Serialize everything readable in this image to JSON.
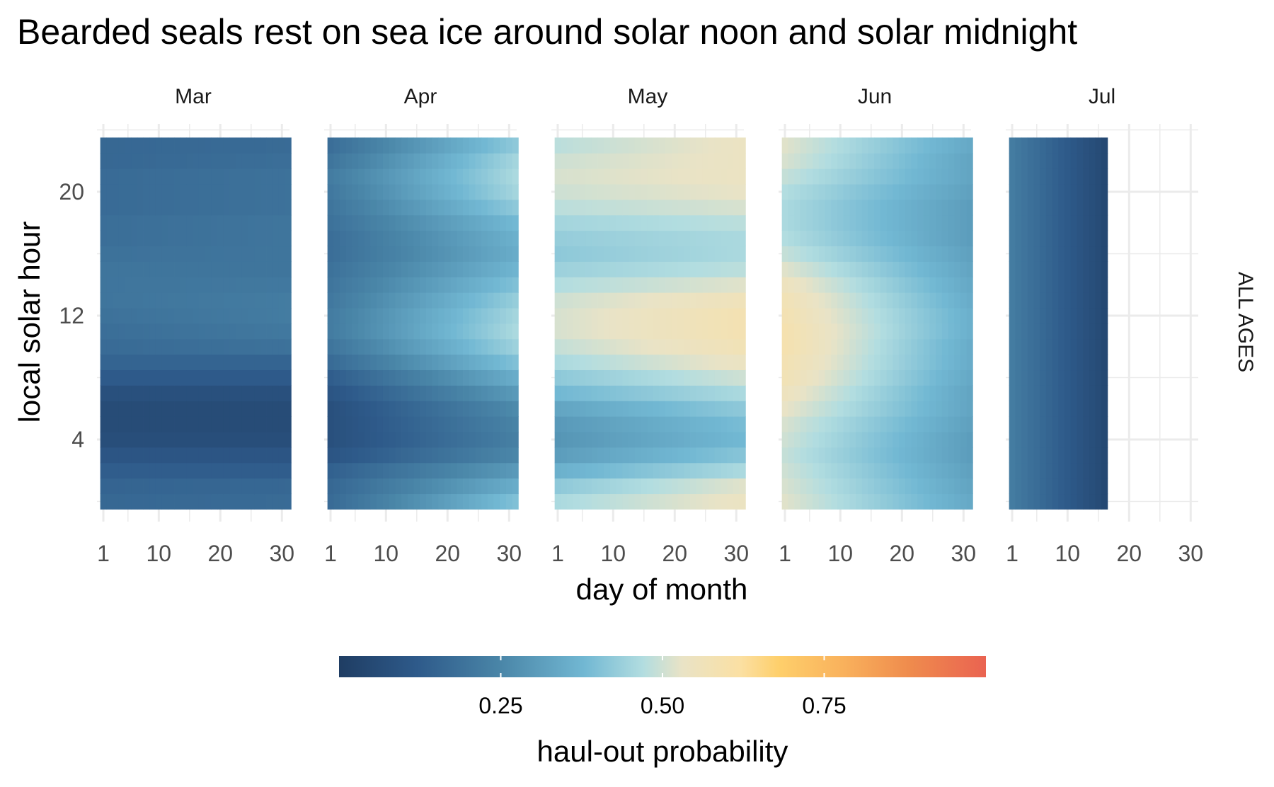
{
  "chart_data": {
    "type": "heatmap",
    "title": "Bearded seals rest on sea ice around solar noon and solar midnight",
    "xlabel": "day of month",
    "ylabel": "local solar hour",
    "facet_strip_right": "ALL AGES",
    "x_ticks": [
      1,
      10,
      20,
      30
    ],
    "y_ticks": [
      4,
      12,
      20
    ],
    "xlim": [
      1,
      31
    ],
    "ylim": [
      0,
      23
    ],
    "grid": true,
    "legend_position": "bottom",
    "colorbar": {
      "title": "haul-out probability",
      "ticks": [
        "0.25",
        "0.50",
        "0.75"
      ],
      "range": [
        0,
        1
      ],
      "stops": [
        {
          "v": 0.0,
          "color": "#1f3d63"
        },
        {
          "v": 0.12,
          "color": "#2e5a8a"
        },
        {
          "v": 0.25,
          "color": "#4a86a8"
        },
        {
          "v": 0.38,
          "color": "#72b8d3"
        },
        {
          "v": 0.47,
          "color": "#b2dde0"
        },
        {
          "v": 0.53,
          "color": "#e9e3c6"
        },
        {
          "v": 0.62,
          "color": "#fbe0a3"
        },
        {
          "v": 0.68,
          "color": "#fecf6b"
        },
        {
          "v": 0.78,
          "color": "#f9b15c"
        },
        {
          "v": 0.88,
          "color": "#ef8c4d"
        },
        {
          "v": 1.0,
          "color": "#ea6351"
        }
      ]
    },
    "panels": [
      {
        "label": "Mar",
        "day_range": [
          1,
          31
        ],
        "hour_values_early": [
          0.16,
          0.15,
          0.13,
          0.1,
          0.07,
          0.06,
          0.06,
          0.08,
          0.12,
          0.15,
          0.17,
          0.18,
          0.19,
          0.2,
          0.2,
          0.2,
          0.19,
          0.18,
          0.18,
          0.17,
          0.17,
          0.17,
          0.16,
          0.16
        ],
        "hour_values_late": [
          0.17,
          0.16,
          0.13,
          0.1,
          0.07,
          0.06,
          0.06,
          0.08,
          0.12,
          0.15,
          0.19,
          0.21,
          0.22,
          0.22,
          0.21,
          0.2,
          0.2,
          0.2,
          0.2,
          0.19,
          0.19,
          0.19,
          0.18,
          0.17
        ]
      },
      {
        "label": "Apr",
        "day_range": [
          1,
          31
        ],
        "hour_values_early": [
          0.17,
          0.16,
          0.14,
          0.1,
          0.08,
          0.08,
          0.08,
          0.1,
          0.13,
          0.17,
          0.2,
          0.22,
          0.22,
          0.21,
          0.2,
          0.19,
          0.18,
          0.18,
          0.19,
          0.2,
          0.21,
          0.22,
          0.2,
          0.18
        ],
        "hour_values_late": [
          0.4,
          0.35,
          0.3,
          0.25,
          0.23,
          0.24,
          0.26,
          0.3,
          0.35,
          0.4,
          0.44,
          0.46,
          0.45,
          0.43,
          0.4,
          0.37,
          0.35,
          0.36,
          0.38,
          0.42,
          0.45,
          0.46,
          0.45,
          0.42
        ]
      },
      {
        "label": "May",
        "day_range": [
          1,
          31
        ],
        "hour_values_early": [
          0.46,
          0.42,
          0.36,
          0.31,
          0.29,
          0.3,
          0.33,
          0.38,
          0.42,
          0.46,
          0.49,
          0.51,
          0.51,
          0.5,
          0.47,
          0.44,
          0.42,
          0.43,
          0.45,
          0.48,
          0.5,
          0.51,
          0.5,
          0.48
        ],
        "hour_values_late": [
          0.54,
          0.52,
          0.46,
          0.41,
          0.38,
          0.39,
          0.42,
          0.46,
          0.5,
          0.54,
          0.57,
          0.58,
          0.58,
          0.56,
          0.52,
          0.48,
          0.46,
          0.46,
          0.48,
          0.51,
          0.53,
          0.54,
          0.54,
          0.54
        ]
      },
      {
        "label": "Jun",
        "day_range": [
          1,
          31
        ],
        "hour_values_early": [
          0.52,
          0.51,
          0.5,
          0.49,
          0.5,
          0.51,
          0.53,
          0.55,
          0.57,
          0.58,
          0.59,
          0.59,
          0.58,
          0.57,
          0.55,
          0.52,
          0.49,
          0.47,
          0.46,
          0.46,
          0.47,
          0.49,
          0.51,
          0.52
        ],
        "hour_values_late": [
          0.34,
          0.33,
          0.32,
          0.31,
          0.31,
          0.32,
          0.33,
          0.33,
          0.34,
          0.35,
          0.35,
          0.36,
          0.36,
          0.35,
          0.34,
          0.33,
          0.32,
          0.31,
          0.31,
          0.31,
          0.32,
          0.33,
          0.33,
          0.34
        ]
      },
      {
        "label": "Jul",
        "day_range": [
          1,
          16
        ],
        "hour_values_early": [
          0.22,
          0.22,
          0.22,
          0.22,
          0.22,
          0.22,
          0.22,
          0.22,
          0.22,
          0.22,
          0.22,
          0.22,
          0.22,
          0.22,
          0.22,
          0.22,
          0.22,
          0.22,
          0.22,
          0.22,
          0.22,
          0.22,
          0.22,
          0.22
        ],
        "hour_values_late": [
          0.05,
          0.05,
          0.05,
          0.05,
          0.05,
          0.05,
          0.05,
          0.05,
          0.05,
          0.05,
          0.05,
          0.05,
          0.05,
          0.05,
          0.05,
          0.05,
          0.05,
          0.05,
          0.05,
          0.05,
          0.05,
          0.05,
          0.05,
          0.05
        ]
      }
    ]
  }
}
